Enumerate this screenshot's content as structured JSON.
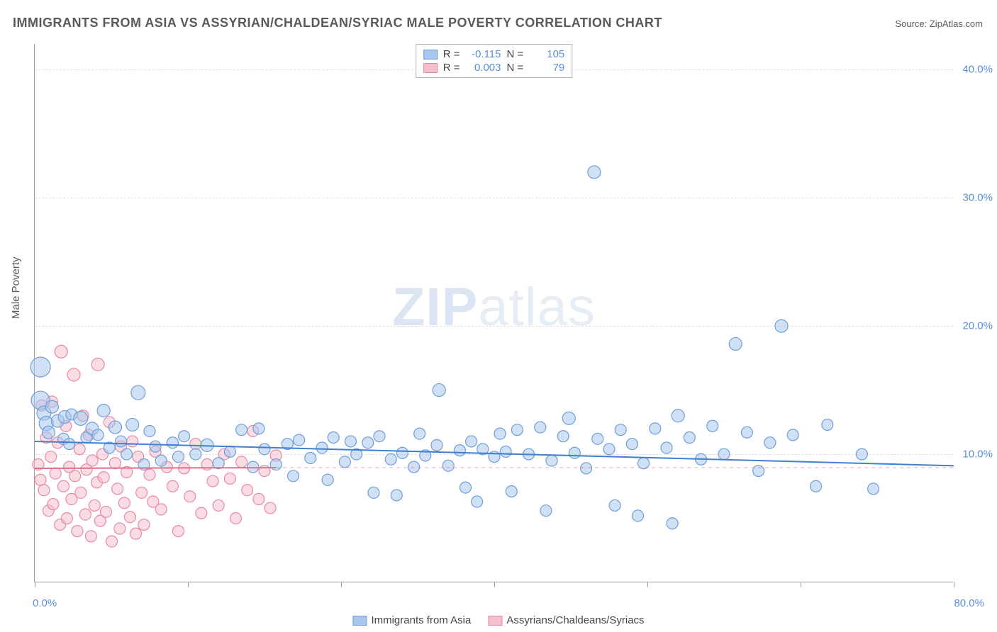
{
  "title": "IMMIGRANTS FROM ASIA VS ASSYRIAN/CHALDEAN/SYRIAC MALE POVERTY CORRELATION CHART",
  "source_label": "Source: ",
  "source_name": "ZipAtlas.com",
  "ylabel": "Male Poverty",
  "watermark_a": "ZIP",
  "watermark_b": "atlas",
  "chart": {
    "type": "scatter",
    "xlim": [
      0,
      80
    ],
    "ylim": [
      0,
      42
    ],
    "x_ticks": [
      0,
      13.33,
      26.67,
      40,
      53.33,
      66.67,
      80
    ],
    "x_tick_labels_shown": {
      "0": "0.0%",
      "80": "80.0%"
    },
    "y_gridlines": [
      10,
      20,
      30,
      40
    ],
    "y_tick_labels": {
      "10": "10.0%",
      "20": "20.0%",
      "30": "30.0%",
      "40": "40.0%"
    },
    "background_color": "#ffffff",
    "grid_color": "#e0e0e0",
    "axis_color": "#a0a0a0",
    "tick_label_color": "#5b8fd6",
    "series": [
      {
        "name": "Immigrants from Asia",
        "color_fill": "#a9c7ec",
        "color_stroke": "#6f9fd8",
        "fill_opacity": 0.55,
        "marker_r_default": 8,
        "trend": {
          "x1": 0,
          "y1": 11.0,
          "x2": 80,
          "y2": 9.1,
          "stroke": "#3f7fd0",
          "width": 2,
          "dash_after_x": 80
        },
        "R": "-0.115",
        "N": "105",
        "points": [
          [
            0.5,
            16.8,
            14
          ],
          [
            0.5,
            14.2,
            13
          ],
          [
            0.8,
            13.2,
            10
          ],
          [
            1,
            12.4,
            10
          ],
          [
            1.2,
            11.7,
            9
          ],
          [
            1.5,
            13.7,
            9
          ],
          [
            2,
            12.6,
            9
          ],
          [
            2.5,
            11.2,
            8
          ],
          [
            2.6,
            12.9,
            9
          ],
          [
            3,
            10.8,
            8
          ],
          [
            3.2,
            13.1,
            8
          ],
          [
            4,
            12.8,
            10
          ],
          [
            4.5,
            11.3,
            8
          ],
          [
            5,
            12.0,
            9
          ],
          [
            5.5,
            11.5,
            8
          ],
          [
            6,
            13.4,
            9
          ],
          [
            6.5,
            10.5,
            8
          ],
          [
            7,
            12.1,
            9
          ],
          [
            7.5,
            11.0,
            8
          ],
          [
            8,
            10.0,
            8
          ],
          [
            8.5,
            12.3,
            9
          ],
          [
            9,
            14.8,
            10
          ],
          [
            9.5,
            9.2,
            8
          ],
          [
            10,
            11.8,
            8
          ],
          [
            10.5,
            10.6,
            8
          ],
          [
            11,
            9.5,
            8
          ],
          [
            12,
            10.9,
            8
          ],
          [
            12.5,
            9.8,
            8
          ],
          [
            13,
            11.4,
            8
          ],
          [
            14,
            10.0,
            8
          ],
          [
            15,
            10.7,
            9
          ],
          [
            16,
            9.3,
            8
          ],
          [
            17,
            10.2,
            8
          ],
          [
            18,
            11.9,
            8
          ],
          [
            19,
            9.0,
            8
          ],
          [
            19.5,
            12.0,
            8
          ],
          [
            20,
            10.4,
            8
          ],
          [
            21,
            9.2,
            8
          ],
          [
            22,
            10.8,
            8
          ],
          [
            22.5,
            8.3,
            8
          ],
          [
            23,
            11.1,
            8
          ],
          [
            24,
            9.7,
            8
          ],
          [
            25,
            10.5,
            8
          ],
          [
            25.5,
            8.0,
            8
          ],
          [
            26,
            11.3,
            8
          ],
          [
            27,
            9.4,
            8
          ],
          [
            27.5,
            11.0,
            8
          ],
          [
            28,
            10.0,
            8
          ],
          [
            29,
            10.9,
            8
          ],
          [
            29.5,
            7.0,
            8
          ],
          [
            30,
            11.4,
            8
          ],
          [
            31,
            9.6,
            8
          ],
          [
            31.5,
            6.8,
            8
          ],
          [
            32,
            10.1,
            8
          ],
          [
            33,
            9.0,
            8
          ],
          [
            33.5,
            11.6,
            8
          ],
          [
            34,
            9.9,
            8
          ],
          [
            35,
            10.7,
            8
          ],
          [
            35.2,
            15.0,
            9
          ],
          [
            36,
            9.1,
            8
          ],
          [
            37,
            10.3,
            8
          ],
          [
            37.5,
            7.4,
            8
          ],
          [
            38,
            11.0,
            8
          ],
          [
            38.5,
            6.3,
            8
          ],
          [
            39,
            10.4,
            8
          ],
          [
            40,
            9.8,
            8
          ],
          [
            40.5,
            11.6,
            8
          ],
          [
            41,
            10.2,
            8
          ],
          [
            41.5,
            7.1,
            8
          ],
          [
            42,
            11.9,
            8
          ],
          [
            43,
            10.0,
            8
          ],
          [
            44,
            12.1,
            8
          ],
          [
            44.5,
            5.6,
            8
          ],
          [
            45,
            9.5,
            8
          ],
          [
            46,
            11.4,
            8
          ],
          [
            46.5,
            12.8,
            9
          ],
          [
            47,
            10.1,
            8
          ],
          [
            48,
            8.9,
            8
          ],
          [
            48.7,
            32.0,
            9
          ],
          [
            49,
            11.2,
            8
          ],
          [
            50,
            10.4,
            8
          ],
          [
            50.5,
            6.0,
            8
          ],
          [
            51,
            11.9,
            8
          ],
          [
            52,
            10.8,
            8
          ],
          [
            52.5,
            5.2,
            8
          ],
          [
            53,
            9.3,
            8
          ],
          [
            54,
            12.0,
            8
          ],
          [
            55,
            10.5,
            8
          ],
          [
            55.5,
            4.6,
            8
          ],
          [
            56,
            13.0,
            9
          ],
          [
            57,
            11.3,
            8
          ],
          [
            58,
            9.6,
            8
          ],
          [
            59,
            12.2,
            8
          ],
          [
            60,
            10.0,
            8
          ],
          [
            61,
            18.6,
            9
          ],
          [
            62,
            11.7,
            8
          ],
          [
            63,
            8.7,
            8
          ],
          [
            64,
            10.9,
            8
          ],
          [
            65,
            20.0,
            9
          ],
          [
            66,
            11.5,
            8
          ],
          [
            68,
            7.5,
            8
          ],
          [
            69,
            12.3,
            8
          ],
          [
            72,
            10.0,
            8
          ],
          [
            73,
            7.3,
            8
          ]
        ]
      },
      {
        "name": "Assyrians/Chaldeans/Syriacs",
        "color_fill": "#f4c0cd",
        "color_stroke": "#e78ba3",
        "fill_opacity": 0.55,
        "marker_r_default": 8,
        "trend": {
          "x1": 0,
          "y1": 8.9,
          "x2": 21,
          "y2": 8.95,
          "stroke": "#e06f8e",
          "width": 2,
          "dash_after_x": 21,
          "dash_to_x": 80
        },
        "R": "0.003",
        "N": "79",
        "points": [
          [
            0.3,
            9.2,
            8
          ],
          [
            0.5,
            8.0,
            8
          ],
          [
            0.6,
            13.8,
            8
          ],
          [
            0.8,
            7.2,
            8
          ],
          [
            1,
            11.3,
            8
          ],
          [
            1.2,
            5.6,
            8
          ],
          [
            1.4,
            9.8,
            8
          ],
          [
            1.5,
            14.1,
            8
          ],
          [
            1.6,
            6.1,
            8
          ],
          [
            1.8,
            8.5,
            8
          ],
          [
            2,
            10.9,
            8
          ],
          [
            2.2,
            4.5,
            8
          ],
          [
            2.3,
            18.0,
            9
          ],
          [
            2.5,
            7.5,
            8
          ],
          [
            2.7,
            12.2,
            8
          ],
          [
            2.8,
            5.0,
            8
          ],
          [
            3,
            9.0,
            8
          ],
          [
            3.2,
            6.5,
            8
          ],
          [
            3.4,
            16.2,
            9
          ],
          [
            3.5,
            8.3,
            8
          ],
          [
            3.7,
            4.0,
            8
          ],
          [
            3.9,
            10.4,
            8
          ],
          [
            4,
            7.0,
            8
          ],
          [
            4.2,
            13.0,
            8
          ],
          [
            4.4,
            5.3,
            8
          ],
          [
            4.5,
            8.8,
            8
          ],
          [
            4.7,
            11.5,
            8
          ],
          [
            4.9,
            3.6,
            8
          ],
          [
            5,
            9.5,
            8
          ],
          [
            5.2,
            6.0,
            8
          ],
          [
            5.4,
            7.8,
            8
          ],
          [
            5.5,
            17.0,
            9
          ],
          [
            5.7,
            4.8,
            8
          ],
          [
            5.9,
            10.0,
            8
          ],
          [
            6,
            8.2,
            8
          ],
          [
            6.2,
            5.5,
            8
          ],
          [
            6.5,
            12.5,
            8
          ],
          [
            6.7,
            3.2,
            8
          ],
          [
            7,
            9.3,
            8
          ],
          [
            7.2,
            7.3,
            8
          ],
          [
            7.4,
            4.2,
            8
          ],
          [
            7.5,
            10.6,
            8
          ],
          [
            7.8,
            6.2,
            8
          ],
          [
            8,
            8.6,
            8
          ],
          [
            8.3,
            5.1,
            8
          ],
          [
            8.5,
            11.0,
            8
          ],
          [
            8.8,
            3.8,
            8
          ],
          [
            9,
            9.8,
            8
          ],
          [
            9.3,
            7.0,
            8
          ],
          [
            9.5,
            4.5,
            8
          ],
          [
            10,
            8.4,
            8
          ],
          [
            10.3,
            6.3,
            8
          ],
          [
            10.5,
            10.2,
            8
          ],
          [
            11,
            5.7,
            8
          ],
          [
            11.5,
            9.0,
            8
          ],
          [
            12,
            7.5,
            8
          ],
          [
            12.5,
            4.0,
            8
          ],
          [
            13,
            8.9,
            8
          ],
          [
            13.5,
            6.7,
            8
          ],
          [
            14,
            10.8,
            8
          ],
          [
            14.5,
            5.4,
            8
          ],
          [
            15,
            9.2,
            8
          ],
          [
            15.5,
            7.9,
            8
          ],
          [
            16,
            6.0,
            8
          ],
          [
            16.5,
            10.0,
            8
          ],
          [
            17,
            8.1,
            8
          ],
          [
            17.5,
            5.0,
            8
          ],
          [
            18,
            9.4,
            8
          ],
          [
            18.5,
            7.2,
            8
          ],
          [
            19,
            11.8,
            8
          ],
          [
            19.5,
            6.5,
            8
          ],
          [
            20,
            8.7,
            8
          ],
          [
            20.5,
            5.8,
            8
          ],
          [
            21,
            9.9,
            8
          ]
        ]
      }
    ]
  },
  "legend_top": {
    "r_label": "R =",
    "n_label": "N ="
  },
  "legend_bottom": [
    {
      "swatch_fill": "#a9c7ec",
      "swatch_stroke": "#6f9fd8",
      "label": "Immigrants from Asia"
    },
    {
      "swatch_fill": "#f4c0cd",
      "swatch_stroke": "#e78ba3",
      "label": "Assyrians/Chaldeans/Syriacs"
    }
  ]
}
